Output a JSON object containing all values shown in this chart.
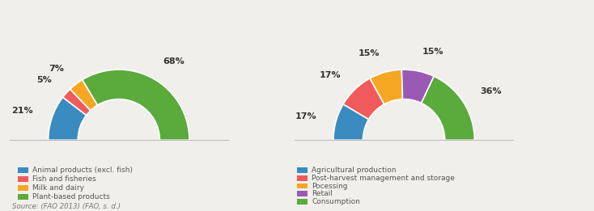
{
  "chart1": {
    "values": [
      21,
      5,
      7,
      68
    ],
    "colors": [
      "#3a8bbf",
      "#f05a5a",
      "#f5a623",
      "#5aaa3c"
    ],
    "labels": [
      "21%",
      "5%",
      "7%",
      "68%"
    ],
    "legend_labels": [
      "Animal products (excl. fish)",
      "Fish and fisheries",
      "Milk and dairy",
      "Plant-based products"
    ]
  },
  "chart2": {
    "values": [
      17,
      17,
      15,
      15,
      36
    ],
    "colors": [
      "#3a8bbf",
      "#f05a5a",
      "#f5a623",
      "#9b59b6",
      "#5aaa3c"
    ],
    "labels": [
      "17%",
      "17%",
      "15%",
      "15%",
      "36%"
    ],
    "legend_labels": [
      "Agricultural production",
      "Post-harvest management and storage",
      "Pocessing",
      "Retail",
      "Consumption"
    ]
  },
  "source_text": "Source: (FAO 2013) (FAO, s. d.)",
  "bg_color": "#f0efeb"
}
